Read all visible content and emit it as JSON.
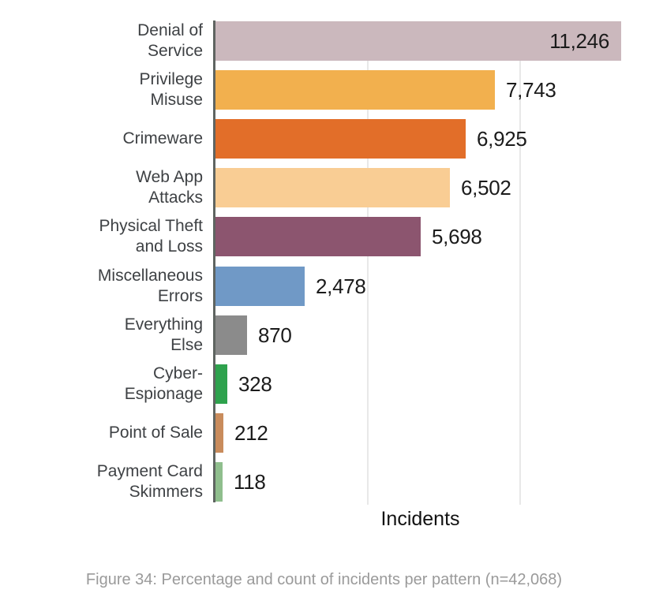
{
  "chart_data": {
    "type": "bar",
    "orientation": "horizontal",
    "xlabel": "Incidents",
    "grid": "vertical-lines-at-10-and-20-percent",
    "x_gridlines_percent": [
      10,
      20
    ],
    "total_n": 42068,
    "legend_position": "none",
    "rows": [
      {
        "label_lines": [
          "Denial of",
          "Service"
        ],
        "value": 11246,
        "value_label": "11,246",
        "color": "#cbb8bd",
        "label_inside": true
      },
      {
        "label_lines": [
          "Privilege",
          "Misuse"
        ],
        "value": 7743,
        "value_label": "7,743",
        "color": "#f2b04e",
        "label_inside": false
      },
      {
        "label_lines": [
          "Crimeware"
        ],
        "value": 6925,
        "value_label": "6,925",
        "color": "#e26e29",
        "label_inside": false
      },
      {
        "label_lines": [
          "Web App",
          "Attacks"
        ],
        "value": 6502,
        "value_label": "6,502",
        "color": "#f9cd94",
        "label_inside": false
      },
      {
        "label_lines": [
          "Physical Theft",
          "and Loss"
        ],
        "value": 5698,
        "value_label": "5,698",
        "color": "#8c556f",
        "label_inside": false
      },
      {
        "label_lines": [
          "Miscellaneous",
          "Errors"
        ],
        "value": 2478,
        "value_label": "2,478",
        "color": "#7099c6",
        "label_inside": false
      },
      {
        "label_lines": [
          "Everything",
          "Else"
        ],
        "value": 870,
        "value_label": "870",
        "color": "#8b8b8b",
        "label_inside": false
      },
      {
        "label_lines": [
          "Cyber-",
          "Espionage"
        ],
        "value": 328,
        "value_label": "328",
        "color": "#2ea24d",
        "label_inside": false
      },
      {
        "label_lines": [
          "Point of Sale"
        ],
        "value": 212,
        "value_label": "212",
        "color": "#c98c5c",
        "label_inside": false
      },
      {
        "label_lines": [
          "Payment Card",
          "Skimmers"
        ],
        "value": 118,
        "value_label": "118",
        "color": "#8fbe8d",
        "label_inside": false
      }
    ],
    "colors": {
      "axis_line": "#5f6461",
      "gridline": "#e8e8e8",
      "category_text": "#3e4144",
      "value_text": "#1b1b1b"
    }
  },
  "caption": "Figure 34: Percentage and count of incidents per pattern (n=42,068)"
}
